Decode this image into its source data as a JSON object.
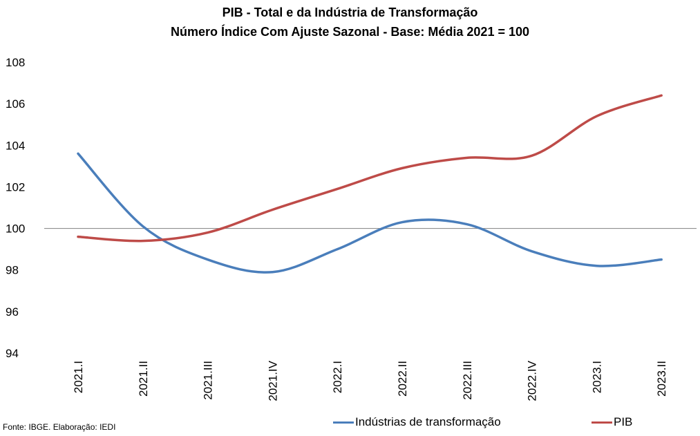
{
  "chart_data": {
    "type": "line",
    "title": "PIB - Total e da Indústria de Transformação",
    "subtitle": "Número Índice Com Ajuste Sazonal - Base: Média 2021 = 100",
    "categories": [
      "2021.I",
      "2021.II",
      "2021.III",
      "2021.IV",
      "2022.I",
      "2022.II",
      "2022.III",
      "2022.IV",
      "2023.I",
      "2023.II"
    ],
    "ylim": [
      94,
      108
    ],
    "yticks": [
      94,
      96,
      98,
      100,
      102,
      104,
      106,
      108
    ],
    "reference_line": 100,
    "legend_position": "bottom",
    "series": [
      {
        "name": "Indústrias de transformação",
        "color": "#4a7ebb",
        "values": [
          103.6,
          100.1,
          98.5,
          97.9,
          99.0,
          100.3,
          100.2,
          98.9,
          98.2,
          98.5
        ]
      },
      {
        "name": "PIB",
        "color": "#be4b48",
        "values": [
          99.6,
          99.4,
          99.8,
          100.9,
          101.9,
          102.9,
          103.4,
          103.5,
          105.4,
          106.4
        ]
      }
    ]
  },
  "source": "Fonte: IBGE. Elaboração: IEDI"
}
